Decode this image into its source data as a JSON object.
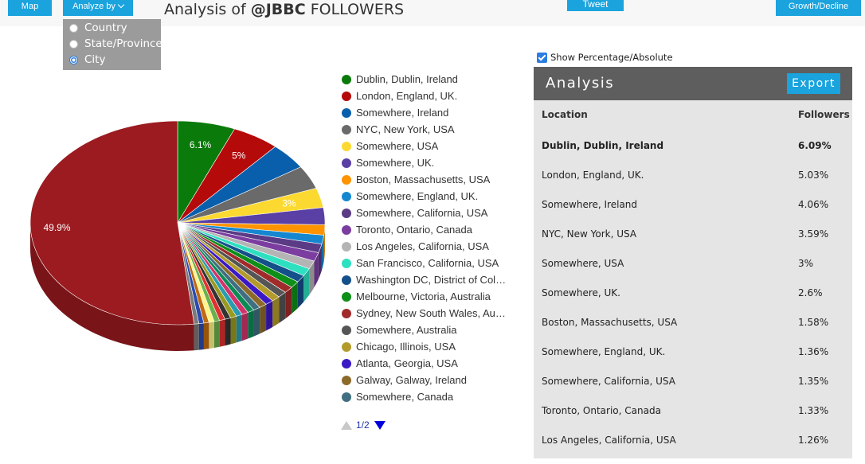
{
  "toolbar": {
    "map_label": "Map",
    "analyze_label": "Analyze by",
    "tweet_label": "Tweet",
    "growth_label": "Growth/Decline"
  },
  "title": {
    "prefix": "Analysis of ",
    "handle": "@JBBC",
    "suffix": " FOLLOWERS"
  },
  "analyze_menu": {
    "options": [
      "Country",
      "State/Province",
      "City"
    ],
    "selected": "City"
  },
  "show_percentage": {
    "label": "Show Percentage/Absolute",
    "checked": true
  },
  "legend": {
    "items": [
      {
        "label": "Dublin, Dublin, Ireland",
        "color": "#0a7a0a"
      },
      {
        "label": "London, England, UK.",
        "color": "#b50a0a"
      },
      {
        "label": "Somewhere, Ireland",
        "color": "#0a5fad"
      },
      {
        "label": "NYC, New York, USA",
        "color": "#6a6a6a"
      },
      {
        "label": "Somewhere, USA",
        "color": "#fcd930"
      },
      {
        "label": "Somewhere, UK.",
        "color": "#5a3fa5"
      },
      {
        "label": "Boston, Massachusetts, USA",
        "color": "#ff9300"
      },
      {
        "label": "Somewhere, England, UK.",
        "color": "#1587d0"
      },
      {
        "label": "Somewhere, California, USA",
        "color": "#5b3a86"
      },
      {
        "label": "Toronto, Ontario, Canada",
        "color": "#7b3ea0"
      },
      {
        "label": "Los Angeles, California, USA",
        "color": "#b4b4b4"
      },
      {
        "label": "San Francisco, California, USA",
        "color": "#2de0c0"
      },
      {
        "label": "Washington DC, District of Columbia, USA",
        "color": "#13508a"
      },
      {
        "label": "Melbourne, Victoria, Australia",
        "color": "#0d8f18"
      },
      {
        "label": "Sydney, New South Wales, Australia",
        "color": "#a12a2a"
      },
      {
        "label": "Somewhere, Australia",
        "color": "#555555"
      },
      {
        "label": "Chicago, Illinois, USA",
        "color": "#b39b2b"
      },
      {
        "label": "Atlanta, Georgia, USA",
        "color": "#3b18c6"
      },
      {
        "label": "Galway, Galway, Ireland",
        "color": "#8c6a2a"
      },
      {
        "label": "Somewhere, Canada",
        "color": "#3f6f80"
      }
    ],
    "page": "1/2"
  },
  "chart_data": {
    "type": "pie",
    "labels_shown": [
      "6.1%",
      "5%",
      "3%",
      "49.9%"
    ],
    "slices": [
      {
        "label": "Dublin, Dublin, Ireland",
        "value": 6.09,
        "color": "#0a7a0a"
      },
      {
        "label": "London, England, UK.",
        "value": 5.03,
        "color": "#b50a0a"
      },
      {
        "label": "Somewhere, Ireland",
        "value": 4.06,
        "color": "#0a5fad"
      },
      {
        "label": "NYC, New York, USA",
        "value": 3.59,
        "color": "#6a6a6a"
      },
      {
        "label": "Somewhere, USA",
        "value": 3.0,
        "color": "#fcd930"
      },
      {
        "label": "Somewhere, UK.",
        "value": 2.6,
        "color": "#5a3fa5"
      },
      {
        "label": "Boston, Massachusetts, USA",
        "value": 1.58,
        "color": "#ff9300"
      },
      {
        "label": "Somewhere, England, UK.",
        "value": 1.36,
        "color": "#1587d0"
      },
      {
        "label": "Somewhere, California, USA",
        "value": 1.35,
        "color": "#5b3a86"
      },
      {
        "label": "Toronto, Ontario, Canada",
        "value": 1.33,
        "color": "#7b3ea0"
      },
      {
        "label": "Los Angeles, California, USA",
        "value": 1.26,
        "color": "#b4b4b4"
      },
      {
        "label": "San Francisco, California, USA",
        "value": 1.2,
        "color": "#2de0c0"
      },
      {
        "label": "Washington DC, District of Columbia, USA",
        "value": 1.1,
        "color": "#13508a"
      },
      {
        "label": "Melbourne, Victoria, Australia",
        "value": 1.05,
        "color": "#0d8f18"
      },
      {
        "label": "Sydney, New South Wales, Australia",
        "value": 1.0,
        "color": "#a12a2a"
      },
      {
        "label": "Somewhere, Australia",
        "value": 0.95,
        "color": "#555555"
      },
      {
        "label": "Chicago, Illinois, USA",
        "value": 0.9,
        "color": "#b39b2b"
      },
      {
        "label": "Atlanta, Georgia, USA",
        "value": 0.85,
        "color": "#3b18c6"
      },
      {
        "label": "Galway, Galway, Ireland",
        "value": 0.8,
        "color": "#8c6a2a"
      },
      {
        "label": "Somewhere, Canada",
        "value": 0.75,
        "color": "#3f6f80"
      },
      {
        "value": 0.7,
        "color": "#0b8a55"
      },
      {
        "value": 0.68,
        "color": "#d4326a"
      },
      {
        "value": 0.66,
        "color": "#2a9cb0"
      },
      {
        "value": 0.64,
        "color": "#9a9a20"
      },
      {
        "value": 0.62,
        "color": "#333333"
      },
      {
        "value": 0.6,
        "color": "#e03030"
      },
      {
        "value": 0.58,
        "color": "#6ab04c"
      },
      {
        "value": 0.56,
        "color": "#fff38a"
      },
      {
        "value": 0.54,
        "color": "#c06a10"
      },
      {
        "value": 0.52,
        "color": "#2a4ab0"
      },
      {
        "value": 0.5,
        "color": "#7a7a7a"
      },
      {
        "value": 49.9,
        "color": "#9b1b20"
      }
    ]
  },
  "analysis": {
    "title": "Analysis",
    "export_label": "Export",
    "col_location": "Location",
    "col_followers": "Followers",
    "rows": [
      {
        "location": "Dublin, Dublin, Ireland",
        "followers": "6.09%"
      },
      {
        "location": "London, England, UK.",
        "followers": "5.03%"
      },
      {
        "location": "Somewhere, Ireland",
        "followers": "4.06%"
      },
      {
        "location": "NYC, New York, USA",
        "followers": "3.59%"
      },
      {
        "location": "Somewhere, USA",
        "followers": "3%"
      },
      {
        "location": "Somewhere, UK.",
        "followers": "2.6%"
      },
      {
        "location": "Boston, Massachusetts, USA",
        "followers": "1.58%"
      },
      {
        "location": "Somewhere, England, UK.",
        "followers": "1.36%"
      },
      {
        "location": "Somewhere, California, USA",
        "followers": "1.35%"
      },
      {
        "location": "Toronto, Ontario, Canada",
        "followers": "1.33%"
      },
      {
        "location": "Los Angeles, California, USA",
        "followers": "1.26%"
      }
    ]
  }
}
